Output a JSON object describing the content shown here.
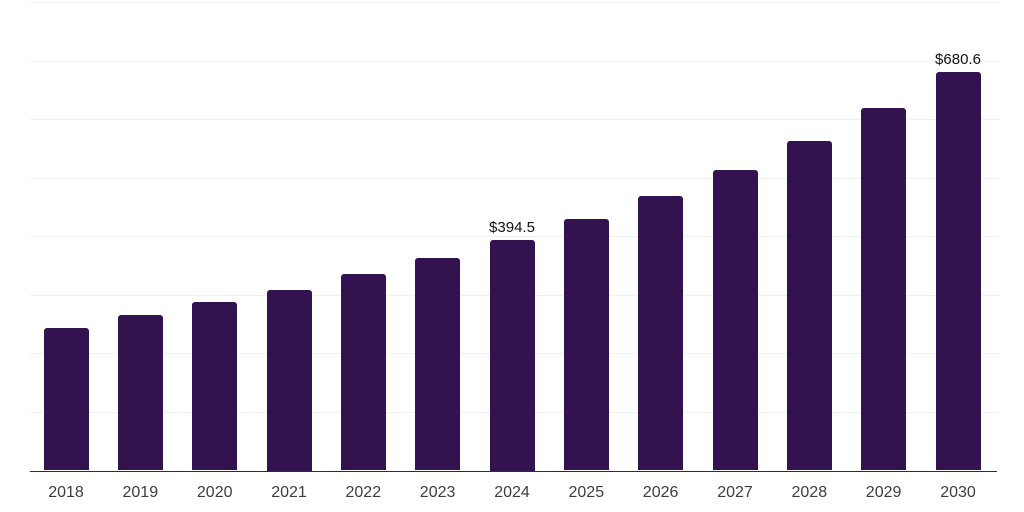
{
  "chart_data": {
    "type": "bar",
    "title": "",
    "xlabel": "",
    "ylabel": "",
    "categories": [
      "2018",
      "2019",
      "2020",
      "2021",
      "2022",
      "2023",
      "2024",
      "2025",
      "2026",
      "2027",
      "2028",
      "2029",
      "2030"
    ],
    "values": [
      244.0,
      266.0,
      287.0,
      309.0,
      336.0,
      363.5,
      394.5,
      430.0,
      468.0,
      513.0,
      562.0,
      618.5,
      680.6
    ],
    "data_labels": {
      "2024": "$394.5",
      "2030": "$680.6"
    },
    "ylim": [
      0,
      800
    ],
    "gridline_step": 100,
    "grid": "horizontal-only",
    "legend": "none",
    "colors": {
      "bar": "#331250",
      "grid": "#f1f1f1",
      "axis": "#2e2e2e",
      "value_label": "#111111",
      "tick_label": "#3d3d3d",
      "background": "#ffffff"
    }
  }
}
